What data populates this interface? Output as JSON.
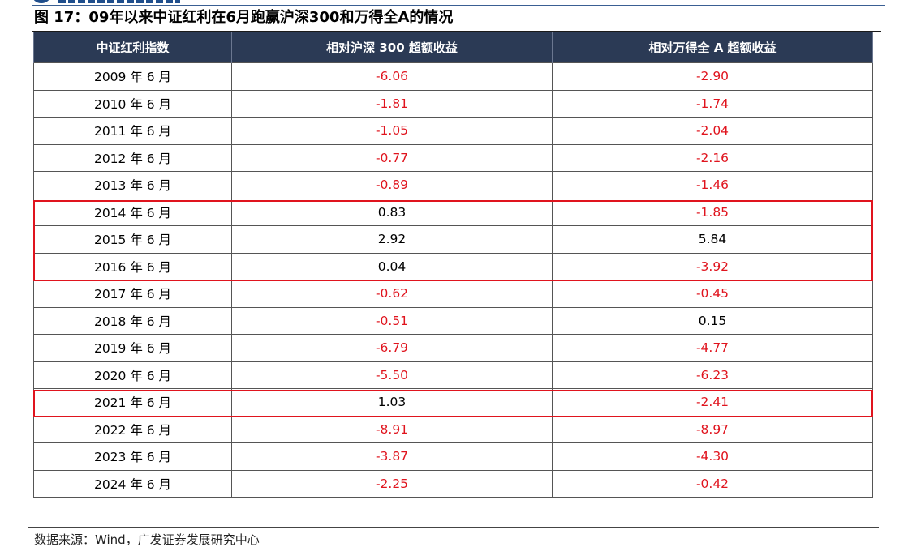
{
  "title": "图 17：09年以来中证红利在6月跑赢沪深300和万得全A的情况",
  "table": {
    "headers": [
      "中证红利指数",
      "相对沪深 300 超额收益",
      "相对万得全 A 超额收益"
    ],
    "rows": [
      {
        "period": "2009 年 6 月",
        "vs_hs300": "-6.06",
        "vs_wind_a": "-2.90"
      },
      {
        "period": "2010 年 6 月",
        "vs_hs300": "-1.81",
        "vs_wind_a": "-1.74"
      },
      {
        "period": "2011 年 6 月",
        "vs_hs300": "-1.05",
        "vs_wind_a": "-2.04"
      },
      {
        "period": "2012 年 6 月",
        "vs_hs300": "-0.77",
        "vs_wind_a": "-2.16"
      },
      {
        "period": "2013 年 6 月",
        "vs_hs300": "-0.89",
        "vs_wind_a": "-1.46"
      },
      {
        "period": "2014 年 6 月",
        "vs_hs300": "0.83",
        "vs_wind_a": "-1.85"
      },
      {
        "period": "2015 年 6 月",
        "vs_hs300": "2.92",
        "vs_wind_a": "5.84"
      },
      {
        "period": "2016 年 6 月",
        "vs_hs300": "0.04",
        "vs_wind_a": "-3.92"
      },
      {
        "period": "2017 年 6 月",
        "vs_hs300": "-0.62",
        "vs_wind_a": "-0.45"
      },
      {
        "period": "2018 年 6 月",
        "vs_hs300": "-0.51",
        "vs_wind_a": "0.15"
      },
      {
        "period": "2019 年 6 月",
        "vs_hs300": "-6.79",
        "vs_wind_a": "-4.77"
      },
      {
        "period": "2020 年 6 月",
        "vs_hs300": "-5.50",
        "vs_wind_a": "-6.23"
      },
      {
        "period": "2021 年 6 月",
        "vs_hs300": "1.03",
        "vs_wind_a": "-2.41"
      },
      {
        "period": "2022 年 6 月",
        "vs_hs300": "-8.91",
        "vs_wind_a": "-8.97"
      },
      {
        "period": "2023 年 6 月",
        "vs_hs300": "-3.87",
        "vs_wind_a": "-4.30"
      },
      {
        "period": "2024 年 6 月",
        "vs_hs300": "-2.25",
        "vs_wind_a": "-0.42"
      }
    ]
  },
  "highlighted_periods": [
    "2014 年 6 月",
    "2015 年 6 月",
    "2016 年 6 月",
    "2021 年 6 月"
  ],
  "source": "数据来源：Wind，广发证券发展研究中心",
  "colors": {
    "header_bg": "#2b3a55",
    "negative_text": "#e0141e",
    "highlight_border": "#e0141e"
  }
}
